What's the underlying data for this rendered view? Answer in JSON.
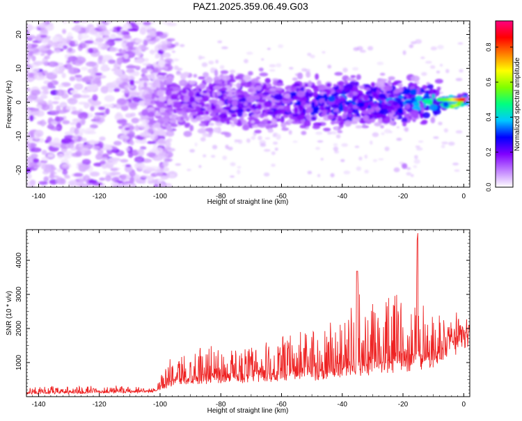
{
  "title": "PAZ1.2025.359.06.49.G03",
  "chart_data": [
    {
      "type": "heatmap",
      "description_hidden": false,
      "xlabel": "Height of straight line (km)",
      "ylabel": "Frequency (Hz)",
      "xlim": [
        -144,
        2
      ],
      "ylim": [
        -25,
        24
      ],
      "xticks": [
        -140,
        -120,
        -100,
        -80,
        -60,
        -40,
        -20,
        0
      ],
      "yticks": [
        -20,
        -10,
        0,
        10,
        20
      ],
      "colorbar": {
        "label": "Normalized spectral amplitude",
        "range": [
          0,
          0.95
        ],
        "ticks": [
          0.0,
          0.2,
          0.4,
          0.6,
          0.8
        ],
        "colormap": [
          "#ffffff",
          "#c080ff",
          "#8000ff",
          "#0000ff",
          "#00c8ff",
          "#00ff80",
          "#80ff00",
          "#ffff00",
          "#ff8000",
          "#ff0000",
          "#ff0080"
        ]
      },
      "signal_track": {
        "frequency_hz": [
          1,
          0,
          0,
          0,
          0,
          0,
          0,
          0,
          0,
          0,
          0,
          0,
          0,
          0
        ],
        "height_km": [
          1,
          -5,
          -10,
          -20,
          -30,
          -40,
          -50,
          -60,
          -70,
          -80,
          -90,
          -95,
          -100,
          -108
        ],
        "peak_amplitude": [
          0.9,
          0.55,
          0.45,
          0.35,
          0.3,
          0.32,
          0.28,
          0.25,
          0.25,
          0.22,
          0.2,
          0.18,
          0.15,
          0.1
        ]
      }
    },
    {
      "type": "line",
      "xlabel": "Height of straight line (km)",
      "ylabel": "SNR (10 * v/v)",
      "xlim": [
        -144,
        2
      ],
      "ylim": [
        0,
        4900
      ],
      "xticks": [
        -140,
        -120,
        -100,
        -80,
        -60,
        -40,
        -20,
        0
      ],
      "yticks": [
        1000,
        2000,
        3000,
        4000
      ],
      "series_color": "#ee2222",
      "envelope": {
        "height_km": [
          -144,
          -120,
          -101,
          -100,
          -95,
          -90,
          -85,
          -80,
          -75,
          -70,
          -65,
          -60,
          -55,
          -50,
          -45,
          -40,
          -36,
          -35,
          -34,
          -30,
          -25,
          -20,
          -17,
          -15,
          -14,
          -10,
          -5,
          -2,
          0,
          2
        ],
        "baseline_snr": [
          90,
          110,
          150,
          250,
          400,
          450,
          480,
          500,
          500,
          520,
          550,
          560,
          600,
          620,
          650,
          700,
          800,
          850,
          800,
          800,
          850,
          900,
          950,
          1000,
          1000,
          1100,
          1500,
          1650,
          1750,
          1750
        ],
        "peak_snr": [
          300,
          300,
          300,
          750,
          1200,
          1450,
          1580,
          1500,
          1450,
          1550,
          1600,
          1700,
          1900,
          2100,
          2150,
          2400,
          2800,
          3680,
          2500,
          2700,
          2900,
          3000,
          3200,
          4900,
          3000,
          2500,
          2200,
          2100,
          2250,
          2100
        ]
      }
    }
  ]
}
